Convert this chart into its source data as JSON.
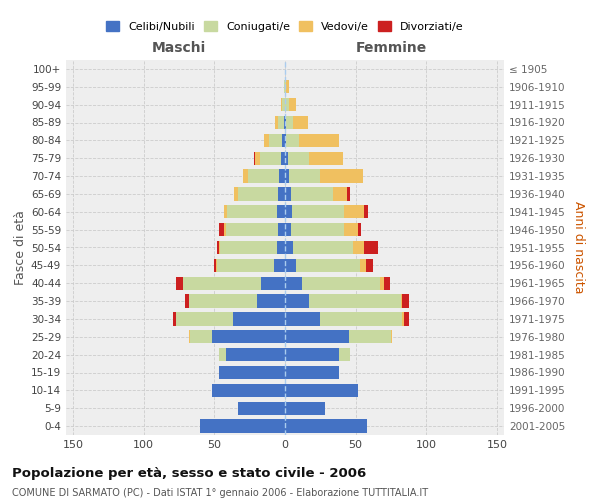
{
  "age_groups": [
    "0-4",
    "5-9",
    "10-14",
    "15-19",
    "20-24",
    "25-29",
    "30-34",
    "35-39",
    "40-44",
    "45-49",
    "50-54",
    "55-59",
    "60-64",
    "65-69",
    "70-74",
    "75-79",
    "80-84",
    "85-89",
    "90-94",
    "95-99",
    "100+"
  ],
  "birth_years": [
    "2001-2005",
    "1996-2000",
    "1991-1995",
    "1986-1990",
    "1981-1985",
    "1976-1980",
    "1971-1975",
    "1966-1970",
    "1961-1965",
    "1956-1960",
    "1951-1955",
    "1946-1950",
    "1941-1945",
    "1936-1940",
    "1931-1935",
    "1926-1930",
    "1921-1925",
    "1916-1920",
    "1911-1915",
    "1906-1910",
    "≤ 1905"
  ],
  "males_celibi": [
    60,
    33,
    52,
    47,
    42,
    52,
    37,
    20,
    17,
    8,
    6,
    5,
    6,
    5,
    4,
    3,
    2,
    1,
    0,
    0,
    0
  ],
  "males_coniugati": [
    0,
    0,
    0,
    0,
    5,
    15,
    40,
    48,
    55,
    40,
    40,
    37,
    35,
    28,
    22,
    15,
    9,
    4,
    2,
    1,
    0
  ],
  "males_vedovi": [
    0,
    0,
    0,
    0,
    0,
    1,
    0,
    0,
    0,
    1,
    1,
    1,
    2,
    3,
    4,
    3,
    4,
    2,
    1,
    0,
    0
  ],
  "males_divorziati": [
    0,
    0,
    0,
    0,
    0,
    0,
    2,
    3,
    5,
    1,
    1,
    4,
    0,
    0,
    0,
    1,
    0,
    0,
    0,
    0,
    0
  ],
  "females_nubili": [
    58,
    28,
    52,
    38,
    38,
    45,
    25,
    17,
    12,
    8,
    6,
    4,
    5,
    4,
    3,
    2,
    1,
    1,
    0,
    0,
    0
  ],
  "females_coniugate": [
    0,
    0,
    0,
    0,
    8,
    30,
    58,
    65,
    55,
    45,
    42,
    38,
    37,
    30,
    22,
    15,
    9,
    5,
    3,
    1,
    0
  ],
  "females_vedove": [
    0,
    0,
    0,
    0,
    0,
    1,
    1,
    1,
    3,
    4,
    8,
    10,
    14,
    10,
    30,
    24,
    28,
    10,
    5,
    2,
    0
  ],
  "females_divorziate": [
    0,
    0,
    0,
    0,
    0,
    0,
    4,
    5,
    4,
    5,
    10,
    2,
    3,
    2,
    0,
    0,
    0,
    0,
    0,
    0,
    0
  ],
  "color_celibi": "#4472c4",
  "color_coniugati": "#c8d9a0",
  "color_vedovi": "#f0c060",
  "color_divorziati": "#cc2020",
  "xlim": 155,
  "title": "Popolazione per età, sesso e stato civile - 2006",
  "subtitle": "COMUNE DI SARMATO (PC) - Dati ISTAT 1° gennaio 2006 - Elaborazione TUTTITALIA.IT",
  "label_maschi": "Maschi",
  "label_femmine": "Femmine",
  "label_fascia": "Fasce di età",
  "label_anni": "Anni di nascita",
  "legend_celibi": "Celibi/Nubili",
  "legend_coniugati": "Coniugati/e",
  "legend_vedovi": "Vedovi/e",
  "legend_divorziati": "Divorziati/e"
}
